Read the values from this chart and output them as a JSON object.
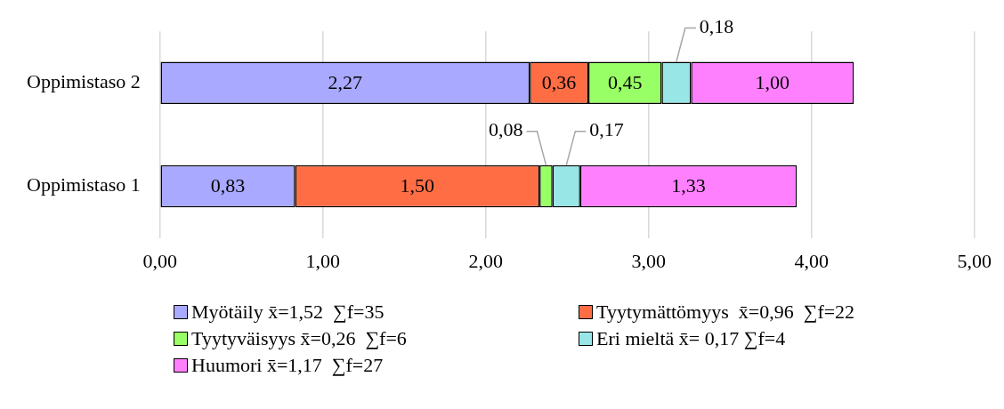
{
  "chart_data": {
    "type": "bar",
    "orientation": "horizontal",
    "stacked": true,
    "categories": [
      "Oppimistaso 2",
      "Oppimistaso 1"
    ],
    "series": [
      {
        "name": "Myötäily x̄=1,52  ∑f=35",
        "color": "#a9a9ff",
        "values": [
          2.27,
          0.83
        ],
        "value_labels": [
          "2,27",
          "0,83"
        ]
      },
      {
        "name": "Tyytymättömyys  x̄=0,96  ∑f=22",
        "color": "#ff6d45",
        "values": [
          0.36,
          1.5
        ],
        "value_labels": [
          "0,36",
          "1,50"
        ]
      },
      {
        "name": "Tyytyväisyys x̄=0,26  ∑f=6",
        "color": "#99ff66",
        "values": [
          0.45,
          0.08
        ],
        "value_labels": [
          "0,45",
          "0,08"
        ]
      },
      {
        "name": "Eri mieltä x̄= 0,17 ∑f=4",
        "color": "#99e6e6",
        "values": [
          0.18,
          0.17
        ],
        "value_labels": [
          "0,18",
          "0,17"
        ]
      },
      {
        "name": "Huumori x̄=1,17  ∑f=27",
        "color": "#ff80ff",
        "values": [
          1.0,
          1.33
        ],
        "value_labels": [
          "1,00",
          "1,33"
        ]
      }
    ],
    "xlim": [
      0,
      5
    ],
    "xticks": [
      {
        "value": 0,
        "label": "0,00"
      },
      {
        "value": 1,
        "label": "1,00"
      },
      {
        "value": 2,
        "label": "2,00"
      },
      {
        "value": 3,
        "label": "3,00"
      },
      {
        "value": 4,
        "label": "4,00"
      },
      {
        "value": 5,
        "label": "5,00"
      }
    ],
    "grid": "x",
    "legend": "bottom"
  }
}
